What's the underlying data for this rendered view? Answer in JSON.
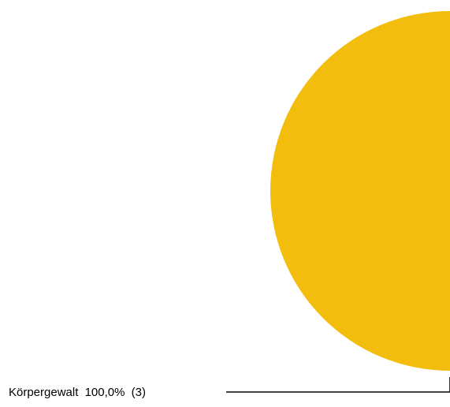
{
  "chart_data": {
    "type": "pie",
    "slices": [
      {
        "label": "Körpergewalt",
        "percent_label": "100,0%",
        "count_label": "(3)",
        "value": 3,
        "color": "#F3BD0D"
      }
    ],
    "legend": "none"
  }
}
